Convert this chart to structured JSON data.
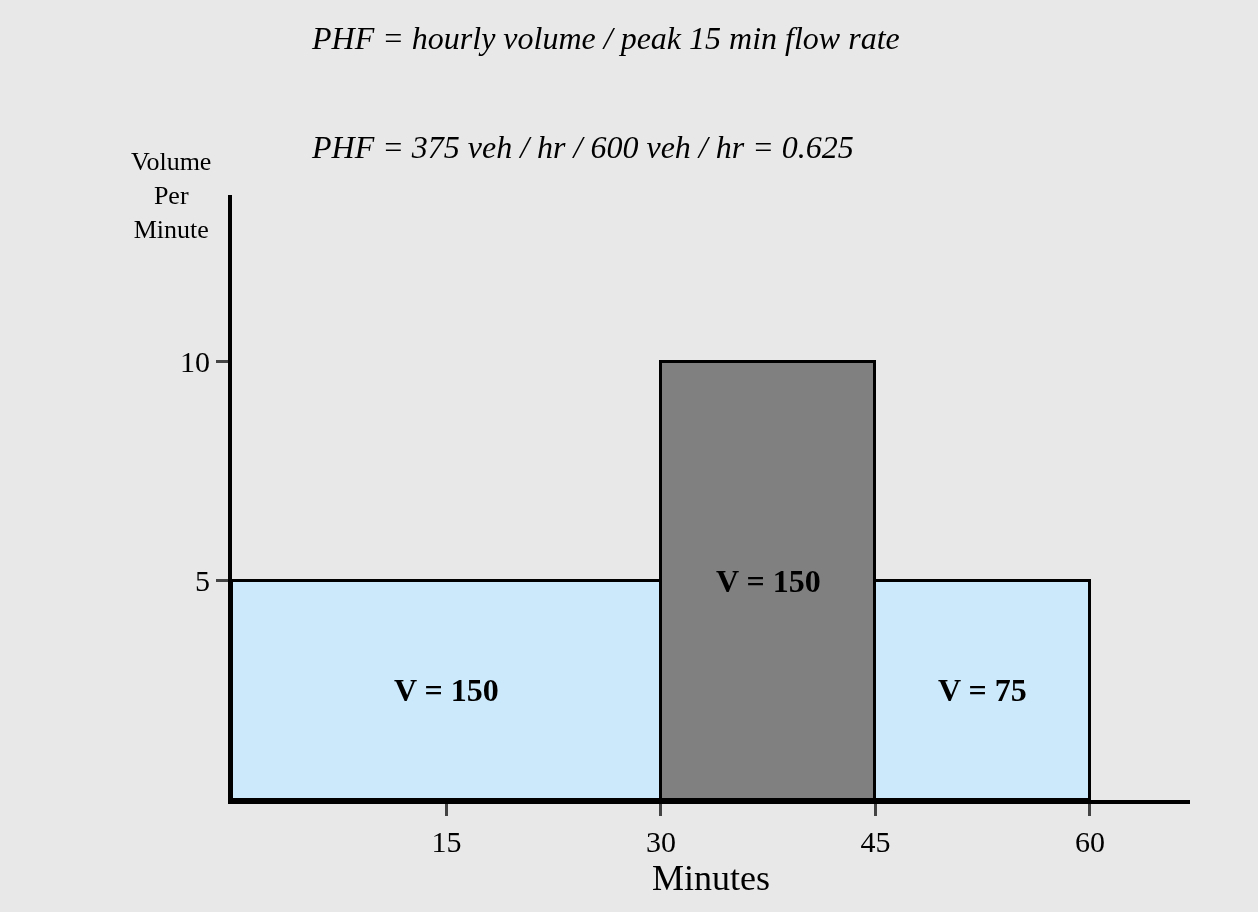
{
  "chart_data": {
    "type": "histogram",
    "bins": [
      0,
      30,
      45,
      60
    ],
    "values": [
      5,
      10,
      5
    ],
    "colors": [
      "#cce9fb",
      "#808080",
      "#cce9fb"
    ],
    "xlabel": "Minutes",
    "ylabel": "Volume Per Minute",
    "xlim": [
      0,
      67
    ],
    "ylim": [
      0,
      13.8
    ],
    "xticks": [
      15,
      30,
      45,
      60
    ],
    "yticks": [
      5,
      10
    ],
    "grid": false,
    "annotations": [
      "PHF = hourly volume / peak 15 min flow rate",
      "PHF = 375 veh / hr / 600 veh / hr = 0.625",
      "V = 150",
      "V = 150",
      "V = 75"
    ]
  }
}
